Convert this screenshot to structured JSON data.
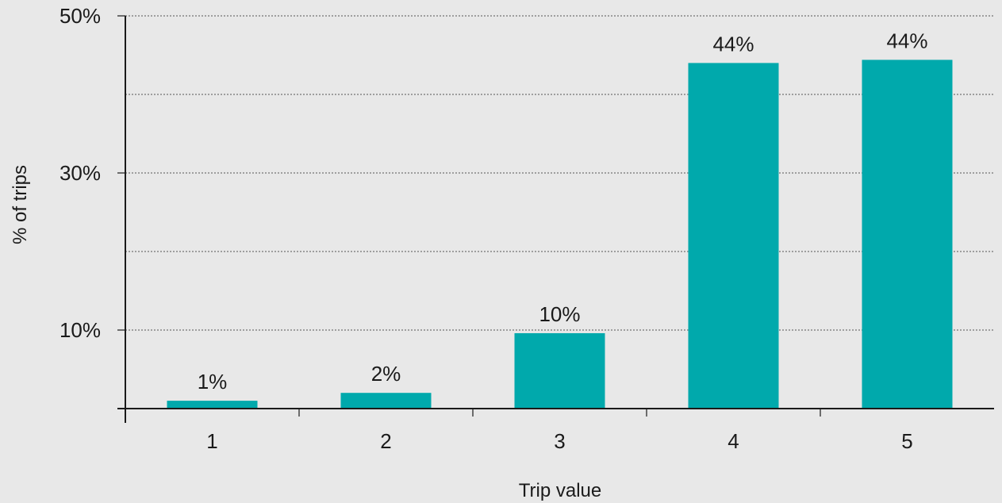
{
  "chart_data": {
    "type": "bar",
    "categories": [
      "1",
      "2",
      "3",
      "4",
      "5"
    ],
    "values": [
      1,
      2,
      10,
      44,
      44
    ],
    "bar_heights": [
      1.0,
      2.0,
      9.6,
      44.0,
      44.4
    ],
    "data_labels": [
      "1%",
      "2%",
      "10%",
      "44%",
      "44%"
    ],
    "title": "",
    "xlabel": "Trip value",
    "ylabel": "% of trips",
    "ylim": [
      0,
      50
    ],
    "y_gridlines": [
      10,
      20,
      30,
      40,
      50
    ],
    "y_tick_labels": [
      {
        "value": 10,
        "label": "10%"
      },
      {
        "value": 30,
        "label": "30%"
      },
      {
        "value": 50,
        "label": "50%"
      }
    ],
    "grid": true,
    "legend": "none",
    "colors": {
      "bar": "#00a9ac",
      "background": "#e8e8e8",
      "text": "#1a1a1a"
    }
  }
}
